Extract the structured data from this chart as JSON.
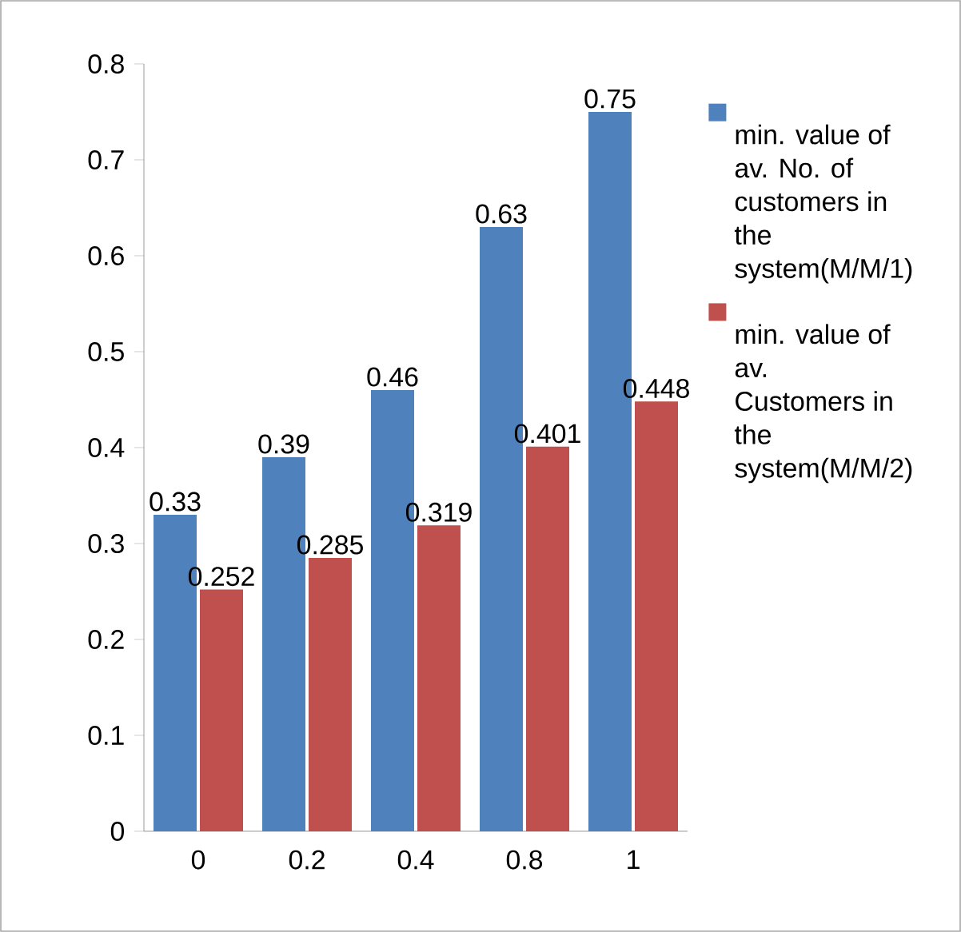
{
  "chart_data": {
    "type": "bar",
    "categories": [
      "0",
      "0.2",
      "0.4",
      "0.8",
      "1"
    ],
    "series": [
      {
        "name": "min. value of av. No. of customers in the system(M/M/1)",
        "color": "#4f81bd",
        "values": [
          0.33,
          0.39,
          0.46,
          0.63,
          0.75
        ]
      },
      {
        "name": "min. value of av. Customers in the system(M/M/2)",
        "color": "#c0504d",
        "values": [
          0.252,
          0.285,
          0.319,
          0.401,
          0.448
        ]
      }
    ],
    "ylim": [
      0,
      0.8
    ],
    "yticks": [
      0,
      0.1,
      0.2,
      0.3,
      0.4,
      0.5,
      0.6,
      0.7,
      0.8
    ],
    "data_labels": true,
    "legend": "right",
    "grid": false
  }
}
